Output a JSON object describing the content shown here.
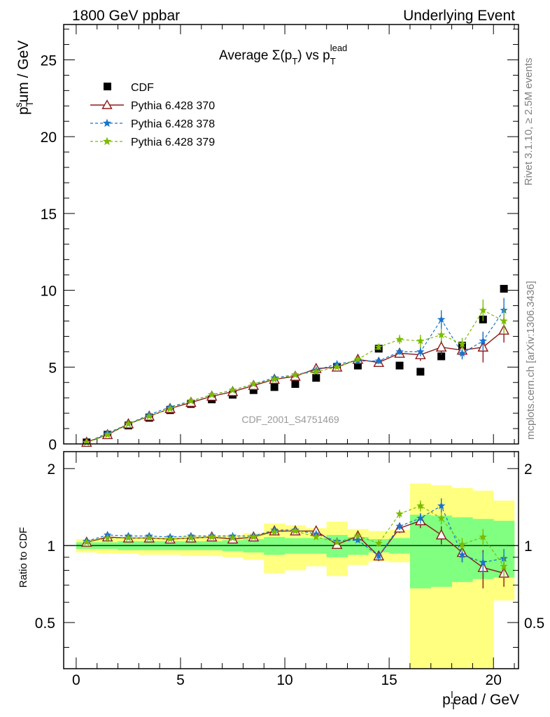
{
  "header": {
    "left": "1800 GeV ppbar",
    "right": "Underlying Event"
  },
  "side_text": {
    "rivet": "Rivet 3.1.10, ≥ 2.5M events",
    "mcplots": "mcplots.cern.ch [arXiv:1306.3436]"
  },
  "watermark": "CDF_2001_S4751469",
  "chart_data": [
    {
      "type": "scatter",
      "title_parts": [
        "Average Σ(p",
        "T",
        ") vs p",
        "T",
        "lead"
      ],
      "ylabel_parts": [
        "p",
        "T",
        "s",
        "um / GeV"
      ],
      "xlim": [
        -0.6,
        21.2
      ],
      "ylim": [
        0,
        27.3
      ],
      "yticks": [
        0,
        5,
        10,
        15,
        20,
        25
      ],
      "ytick_labels": [
        "0",
        "5",
        "10",
        "15",
        "20",
        "25"
      ],
      "legend_position": "upper-left",
      "x": [
        0.5,
        1.5,
        2.5,
        3.5,
        4.5,
        5.5,
        6.5,
        7.5,
        8.5,
        9.5,
        10.5,
        11.5,
        12.5,
        13.5,
        14.5,
        15.5,
        16.5,
        17.5,
        18.5,
        19.5,
        20.5
      ],
      "series": [
        {
          "name": "CDF",
          "color": "#000000",
          "marker": "square",
          "values": [
            0.1,
            0.6,
            1.2,
            1.7,
            2.2,
            2.6,
            2.9,
            3.2,
            3.5,
            3.7,
            3.9,
            4.3,
            5.0,
            5.1,
            6.2,
            5.1,
            4.7,
            5.7,
            6.4,
            8.1,
            10.1
          ]
        },
        {
          "name": "Pythia 6.428 370",
          "color": "#8b1a1a",
          "marker": "triangle-open",
          "dash": "solid",
          "values": [
            0.1,
            0.6,
            1.3,
            1.8,
            2.3,
            2.7,
            3.1,
            3.4,
            3.8,
            4.2,
            4.4,
            4.9,
            5.0,
            5.5,
            5.3,
            5.9,
            5.8,
            6.3,
            6.1,
            6.3,
            7.4
          ],
          "errors": [
            0,
            0,
            0,
            0,
            0,
            0,
            0,
            0,
            0,
            0,
            0,
            0,
            0.1,
            0.1,
            0.2,
            0.3,
            0.4,
            0.5,
            0.5,
            1.0,
            0.8
          ]
        },
        {
          "name": "Pythia 6.428 378",
          "color": "#1874cd",
          "marker": "star",
          "dash": "4,3",
          "values": [
            0.1,
            0.7,
            1.3,
            1.9,
            2.4,
            2.8,
            3.2,
            3.5,
            3.9,
            4.3,
            4.5,
            4.8,
            5.2,
            5.4,
            5.4,
            6.0,
            6.0,
            8.1,
            5.9,
            6.7,
            8.7
          ],
          "errors": [
            0,
            0,
            0,
            0,
            0,
            0,
            0,
            0,
            0,
            0,
            0,
            0,
            0.1,
            0.1,
            0.2,
            0.2,
            0.3,
            0.6,
            0.4,
            0.6,
            0.8
          ]
        },
        {
          "name": "Pythia 6.428 379",
          "color": "#7cbb00",
          "marker": "star",
          "dash": "4,3",
          "values": [
            0.1,
            0.6,
            1.3,
            1.8,
            2.3,
            2.8,
            3.2,
            3.5,
            3.9,
            4.2,
            4.5,
            4.7,
            5.0,
            5.5,
            6.3,
            6.8,
            6.7,
            7.1,
            6.5,
            8.7,
            8.0
          ],
          "errors": [
            0,
            0,
            0,
            0,
            0,
            0,
            0,
            0,
            0,
            0,
            0,
            0,
            0.1,
            0.1,
            0.2,
            0.3,
            0.4,
            0.4,
            0.4,
            0.7,
            0.8
          ]
        }
      ]
    },
    {
      "type": "scatter",
      "ylabel": "Ratio to CDF",
      "xlabel_parts": [
        "p",
        "T",
        "l",
        "ead / GeV"
      ],
      "xlim": [
        -0.6,
        21.2
      ],
      "ylim": [
        0.33,
        2.33
      ],
      "yscale": "log",
      "xticks": [
        0,
        5,
        10,
        15,
        20
      ],
      "xtick_labels": [
        "0",
        "5",
        "10",
        "15",
        "20"
      ],
      "yticks": [
        0.5,
        1,
        2
      ],
      "ytick_labels": [
        "0.5",
        "1",
        "2"
      ],
      "reference_line": 1,
      "band_edges": [
        0,
        1,
        2,
        3,
        4,
        5,
        6,
        7,
        8,
        9,
        10,
        11,
        12,
        13,
        14,
        15,
        16,
        17,
        18,
        19,
        20,
        21
      ],
      "bands": [
        {
          "name": "stat-syst",
          "color": "#ffff80",
          "lower": [
            0.94,
            0.93,
            0.93,
            0.92,
            0.92,
            0.91,
            0.91,
            0.9,
            0.88,
            0.78,
            0.8,
            0.83,
            0.76,
            0.84,
            0.87,
            0.86,
            0.27,
            0.27,
            0.27,
            0.27,
            0.61
          ],
          "upper": [
            1.06,
            1.07,
            1.07,
            1.08,
            1.08,
            1.09,
            1.09,
            1.1,
            1.12,
            1.22,
            1.2,
            1.17,
            1.24,
            1.16,
            1.14,
            1.15,
            1.75,
            1.72,
            1.68,
            1.64,
            1.5
          ]
        },
        {
          "name": "stat",
          "color": "#80ff80",
          "lower": [
            0.97,
            0.97,
            0.96,
            0.96,
            0.96,
            0.96,
            0.96,
            0.95,
            0.94,
            0.92,
            0.93,
            0.93,
            0.9,
            0.92,
            0.94,
            0.93,
            0.68,
            0.69,
            0.72,
            0.74,
            0.75
          ],
          "upper": [
            1.03,
            1.03,
            1.04,
            1.04,
            1.04,
            1.04,
            1.04,
            1.05,
            1.06,
            1.08,
            1.07,
            1.07,
            1.1,
            1.08,
            1.06,
            1.07,
            1.32,
            1.31,
            1.29,
            1.27,
            1.25
          ]
        }
      ],
      "x": [
        0.5,
        1.5,
        2.5,
        3.5,
        4.5,
        5.5,
        6.5,
        7.5,
        8.5,
        9.5,
        10.5,
        11.5,
        12.5,
        13.5,
        14.5,
        15.5,
        16.5,
        17.5,
        18.5,
        19.5,
        20.5
      ],
      "series": [
        {
          "name": "Pythia 6.428 370",
          "color": "#8b1a1a",
          "marker": "triangle-open",
          "dash": "solid",
          "values": [
            1.03,
            1.08,
            1.07,
            1.07,
            1.06,
            1.07,
            1.08,
            1.06,
            1.08,
            1.14,
            1.14,
            1.14,
            1.01,
            1.09,
            0.91,
            1.17,
            1.25,
            1.1,
            0.94,
            0.82,
            0.78
          ],
          "errors": [
            0,
            0,
            0,
            0,
            0,
            0,
            0,
            0,
            0,
            0,
            0,
            0,
            0.02,
            0.02,
            0.04,
            0.05,
            0.08,
            0.09,
            0.08,
            0.14,
            0.09
          ]
        },
        {
          "name": "Pythia 6.428 378",
          "color": "#1874cd",
          "marker": "star",
          "dash": "4,3",
          "values": [
            1.04,
            1.1,
            1.09,
            1.09,
            1.08,
            1.09,
            1.09,
            1.09,
            1.09,
            1.15,
            1.15,
            1.11,
            1.04,
            1.05,
            0.91,
            1.19,
            1.28,
            1.43,
            0.92,
            0.86,
            0.89
          ],
          "errors": [
            0,
            0,
            0,
            0,
            0,
            0,
            0,
            0,
            0,
            0,
            0,
            0,
            0.02,
            0.02,
            0.03,
            0.04,
            0.06,
            0.1,
            0.06,
            0.08,
            0.08
          ]
        },
        {
          "name": "Pythia 6.428 379",
          "color": "#7cbb00",
          "marker": "star",
          "dash": "4,3",
          "values": [
            1.03,
            1.07,
            1.07,
            1.07,
            1.06,
            1.07,
            1.08,
            1.07,
            1.08,
            1.13,
            1.14,
            1.08,
            1.03,
            1.09,
            1.02,
            1.33,
            1.43,
            1.28,
            1.01,
            1.08,
            0.83
          ],
          "errors": [
            0,
            0,
            0,
            0,
            0,
            0,
            0,
            0,
            0,
            0,
            0,
            0,
            0.02,
            0.02,
            0.03,
            0.05,
            0.07,
            0.07,
            0.06,
            0.08,
            0.08
          ]
        }
      ]
    }
  ]
}
